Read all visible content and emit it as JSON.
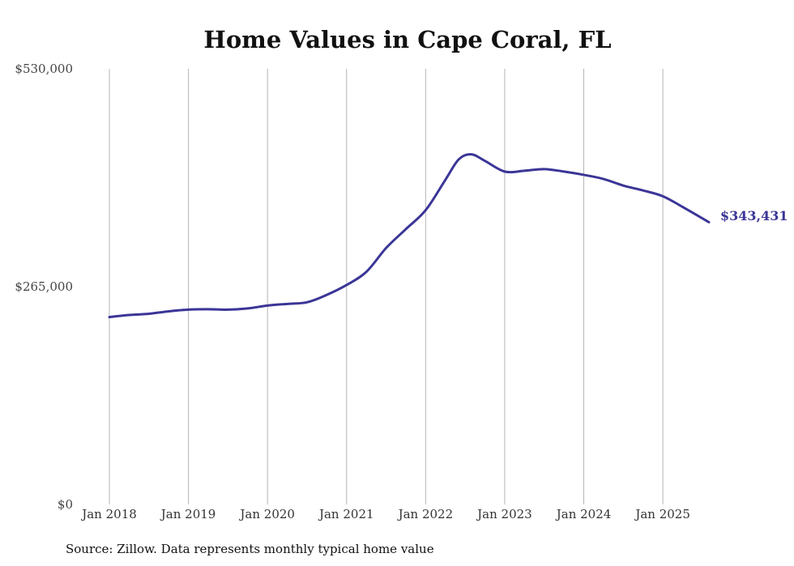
{
  "chart_data": {
    "type": "line",
    "title": "Home Values in Cape Coral, FL",
    "source": "Source: Zillow. Data represents monthly typical home value",
    "xlabel": "",
    "ylabel": "",
    "ylim": [
      0,
      530000
    ],
    "yticks": [
      {
        "value": 0,
        "label": "$0"
      },
      {
        "value": 265000,
        "label": "$265,000"
      },
      {
        "value": 530000,
        "label": "$530,000"
      }
    ],
    "xlim": [
      2018.0,
      2025.583
    ],
    "xticks": [
      {
        "value": 2018,
        "label": "Jan 2018"
      },
      {
        "value": 2019,
        "label": "Jan 2019"
      },
      {
        "value": 2020,
        "label": "Jan 2020"
      },
      {
        "value": 2021,
        "label": "Jan 2021"
      },
      {
        "value": 2022,
        "label": "Jan 2022"
      },
      {
        "value": 2023,
        "label": "Jan 2023"
      },
      {
        "value": 2024,
        "label": "Jan 2024"
      },
      {
        "value": 2025,
        "label": "Jan 2025"
      }
    ],
    "grid": "vertical",
    "end_label": "$343,431",
    "series": [
      {
        "name": "Typical home value",
        "color": "#3b3597",
        "x": [
          2018.0,
          2018.25,
          2018.5,
          2018.75,
          2019.0,
          2019.25,
          2019.5,
          2019.75,
          2020.0,
          2020.25,
          2020.5,
          2020.75,
          2021.0,
          2021.25,
          2021.5,
          2021.75,
          2022.0,
          2022.25,
          2022.42,
          2022.58,
          2022.75,
          2023.0,
          2023.25,
          2023.5,
          2023.75,
          2024.0,
          2024.25,
          2024.5,
          2024.75,
          2025.0,
          2025.25,
          2025.583
        ],
        "y": [
          228000,
          230500,
          232000,
          235000,
          237000,
          237500,
          237000,
          238500,
          242000,
          244000,
          246000,
          255000,
          267000,
          283000,
          312000,
          335000,
          358000,
          395000,
          420000,
          426000,
          418000,
          405000,
          406000,
          408000,
          405000,
          401000,
          396000,
          388000,
          382000,
          375000,
          362000,
          343431
        ]
      }
    ]
  }
}
